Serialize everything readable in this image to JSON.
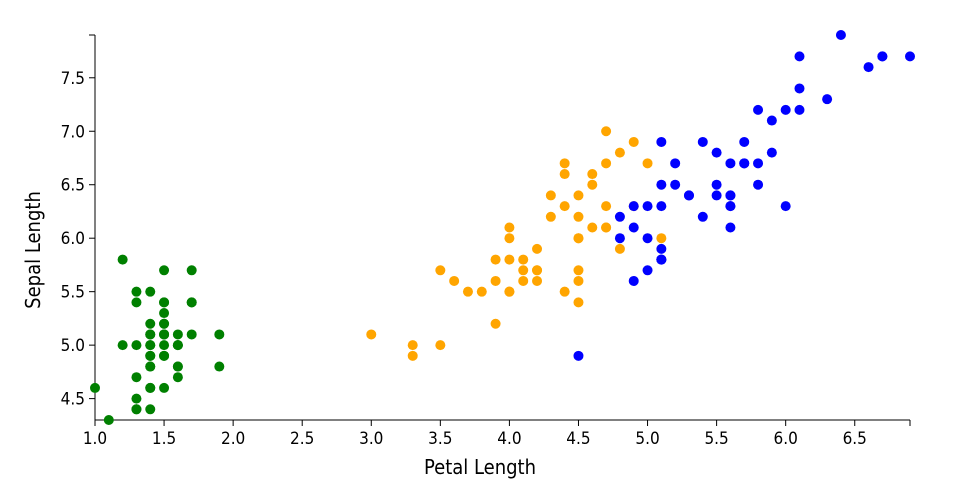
{
  "chart_data": {
    "type": "scatter",
    "x_label": "Petal Length",
    "y_label": "Sepal Length",
    "xlim": [
      1.0,
      6.9
    ],
    "ylim": [
      4.3,
      7.9
    ],
    "xticks": [
      {
        "value": 1,
        "label": "1.0"
      },
      1.5,
      {
        "value": 2,
        "label": "2.0"
      },
      2.5,
      {
        "value": 3,
        "label": "3.0"
      },
      3.5,
      {
        "value": 4,
        "label": "4.0"
      },
      4.5,
      {
        "value": 5,
        "label": "5.0"
      },
      5.5,
      {
        "value": 6,
        "label": "6.0"
      },
      6.5
    ],
    "yticks": [
      4.5,
      {
        "value": 5,
        "label": "5.0"
      },
      5.5,
      {
        "value": 6,
        "label": "6.0"
      },
      6.5,
      {
        "value": 7,
        "label": "7.0"
      },
      7.5
    ],
    "series": [
      {
        "color": "#008000",
        "x": [
          1.4,
          1.4,
          1.3,
          1.5,
          1.4,
          1.7,
          1.4,
          1.5,
          1.4,
          1.5,
          1.5,
          1.6,
          1.4,
          1.1,
          1.2,
          1.5,
          1.3,
          1.4,
          1.7,
          1.5,
          1.7,
          1.5,
          1.0,
          1.7,
          1.9,
          1.6,
          1.6,
          1.5,
          1.4,
          1.6,
          1.6,
          1.5,
          1.5,
          1.4,
          1.5,
          1.2,
          1.3,
          1.4,
          1.3,
          1.5,
          1.3,
          1.3,
          1.3,
          1.6,
          1.9,
          1.4,
          1.6,
          1.4,
          1.5,
          1.4
        ],
        "values": [
          5.1,
          4.9,
          4.7,
          4.6,
          5.0,
          5.4,
          4.6,
          5.0,
          4.4,
          4.9,
          5.4,
          4.8,
          4.8,
          4.3,
          5.8,
          5.7,
          5.4,
          5.1,
          5.7,
          5.1,
          5.4,
          5.1,
          4.6,
          5.1,
          4.8,
          5.0,
          5.0,
          5.2,
          5.2,
          4.7,
          4.8,
          5.4,
          5.2,
          5.5,
          4.9,
          5.0,
          5.5,
          4.9,
          4.4,
          5.1,
          5.0,
          4.5,
          4.4,
          5.0,
          5.1,
          4.8,
          5.1,
          4.6,
          5.3,
          5.0
        ]
      },
      {
        "color": "#ffa500",
        "x": [
          4.7,
          4.5,
          4.9,
          4.0,
          4.6,
          4.5,
          4.7,
          3.3,
          4.6,
          3.9,
          3.5,
          4.2,
          4.0,
          4.7,
          3.6,
          4.4,
          4.5,
          4.1,
          4.5,
          3.9,
          4.8,
          4.0,
          4.9,
          4.7,
          4.3,
          4.4,
          4.8,
          5.0,
          4.5,
          3.5,
          3.8,
          3.7,
          3.9,
          5.1,
          4.5,
          4.5,
          4.7,
          4.4,
          4.1,
          4.0,
          4.4,
          4.6,
          4.0,
          3.3,
          4.2,
          4.2,
          4.2,
          4.3,
          3.0,
          4.1
        ],
        "values": [
          7.0,
          6.4,
          6.9,
          5.5,
          6.5,
          5.7,
          6.3,
          4.9,
          6.6,
          5.2,
          5.0,
          5.9,
          6.0,
          6.1,
          5.6,
          6.7,
          5.6,
          5.8,
          6.2,
          5.6,
          5.9,
          6.1,
          6.3,
          6.1,
          6.4,
          6.6,
          6.8,
          6.7,
          6.0,
          5.7,
          5.5,
          5.5,
          5.8,
          6.0,
          5.4,
          6.0,
          6.7,
          6.3,
          5.6,
          5.5,
          5.5,
          6.1,
          5.8,
          5.0,
          5.6,
          5.7,
          5.7,
          6.2,
          5.1,
          5.7
        ]
      },
      {
        "color": "#0000ff",
        "x": [
          6.0,
          5.1,
          5.9,
          5.6,
          5.8,
          6.6,
          4.5,
          6.3,
          5.8,
          6.1,
          5.1,
          5.3,
          5.5,
          5.0,
          5.1,
          5.3,
          5.5,
          6.7,
          6.9,
          5.0,
          5.7,
          4.9,
          6.7,
          4.9,
          5.7,
          6.0,
          4.8,
          4.9,
          5.6,
          5.8,
          6.1,
          6.4,
          5.6,
          5.1,
          5.6,
          6.1,
          5.6,
          5.5,
          4.8,
          5.4,
          5.6,
          5.1,
          5.1,
          5.9,
          5.7,
          5.2,
          5.0,
          5.2,
          5.4,
          5.1
        ],
        "values": [
          6.3,
          5.8,
          7.1,
          6.3,
          6.5,
          7.6,
          4.9,
          7.3,
          6.7,
          7.2,
          6.5,
          6.4,
          6.8,
          5.7,
          5.8,
          6.4,
          6.5,
          7.7,
          7.7,
          6.0,
          6.9,
          5.6,
          7.7,
          6.3,
          6.7,
          7.2,
          6.2,
          6.1,
          6.4,
          7.2,
          7.4,
          7.9,
          6.4,
          6.3,
          6.1,
          7.7,
          6.3,
          6.4,
          6.0,
          6.9,
          6.7,
          6.9,
          5.8,
          6.8,
          6.7,
          6.7,
          6.3,
          6.5,
          6.2,
          5.9
        ]
      }
    ]
  }
}
